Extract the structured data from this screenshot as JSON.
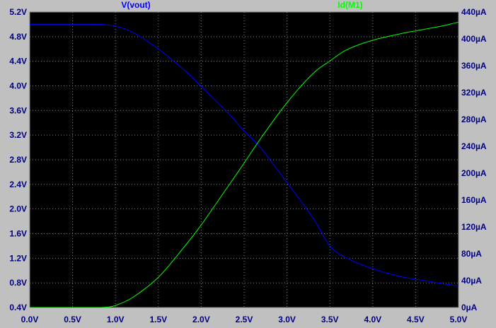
{
  "colors": {
    "background": "#c0c0c0",
    "plot_area": "#000000",
    "grid": "#7f7f7f",
    "tick_labels": "#000080",
    "vout": "#0000ff",
    "id": "#00ff00",
    "vout_label": "#0000ff",
    "id_label": "#00ff00"
  },
  "chart_data": {
    "type": "line",
    "grid": true,
    "legend": "top-center",
    "x": {
      "range": [
        0,
        5.0
      ],
      "ticks": [
        0,
        0.5,
        1.0,
        1.5,
        2.0,
        2.5,
        3.0,
        3.5,
        4.0,
        4.5,
        5.0
      ],
      "tick_labels": [
        "0.0V",
        "0.5V",
        "1.0V",
        "1.5V",
        "2.0V",
        "2.5V",
        "3.0V",
        "3.5V",
        "4.0V",
        "4.5V",
        "5.0V"
      ]
    },
    "y_left": {
      "range": [
        0.4,
        5.2
      ],
      "ticks": [
        0.4,
        0.8,
        1.2,
        1.6,
        2.0,
        2.4,
        2.8,
        3.2,
        3.6,
        4.0,
        4.4,
        4.8,
        5.2
      ],
      "tick_labels": [
        "0.4V",
        "0.8V",
        "1.2V",
        "1.6V",
        "2.0V",
        "2.4V",
        "2.8V",
        "3.2V",
        "3.6V",
        "4.0V",
        "4.4V",
        "4.8V",
        "5.2V"
      ]
    },
    "y_right": {
      "range": [
        0,
        440
      ],
      "ticks": [
        0,
        40,
        80,
        120,
        160,
        200,
        240,
        280,
        320,
        360,
        400,
        440
      ],
      "tick_labels": [
        "0µA",
        "40µA",
        "80µA",
        "120µA",
        "160µA",
        "200µA",
        "240µA",
        "280µA",
        "320µA",
        "360µA",
        "400µA",
        "440µA"
      ]
    },
    "series": [
      {
        "name": "V(vout)",
        "axis": "left",
        "x": [
          0,
          0.5,
          0.8,
          0.9,
          1.0,
          1.2,
          1.5,
          1.8,
          2.0,
          2.3,
          2.5,
          2.7,
          3.0,
          3.3,
          3.5,
          3.7,
          4.0,
          4.3,
          4.5,
          4.8,
          5.0
        ],
        "y": [
          5.0,
          5.0,
          5.0,
          4.99,
          4.97,
          4.87,
          4.6,
          4.26,
          3.99,
          3.58,
          3.27,
          2.98,
          2.43,
          1.86,
          1.4,
          1.2,
          1.03,
          0.91,
          0.86,
          0.79,
          0.75
        ]
      },
      {
        "name": "Id(M1)",
        "axis": "right",
        "x": [
          0,
          0.5,
          0.8,
          0.9,
          1.0,
          1.2,
          1.5,
          1.8,
          2.0,
          2.3,
          2.5,
          2.7,
          3.0,
          3.3,
          3.5,
          3.7,
          4.0,
          4.3,
          4.5,
          4.8,
          5.0
        ],
        "y": [
          0,
          0,
          0,
          0.5,
          3,
          15,
          45,
          90,
          123,
          178,
          215,
          253,
          305,
          348,
          367,
          384,
          398,
          407,
          412,
          419,
          425
        ]
      }
    ]
  }
}
